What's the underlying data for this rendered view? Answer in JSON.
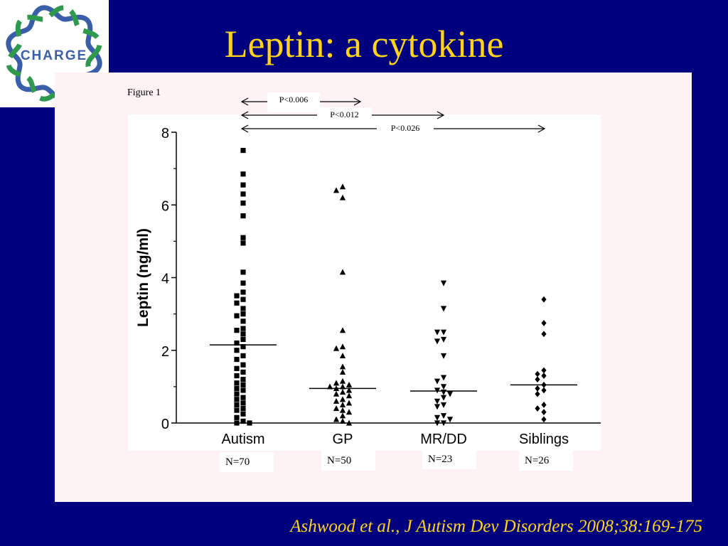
{
  "slide": {
    "title": "Leptin: a cytokine",
    "logo_text": "CHARGE",
    "figure_label": "Figure 1",
    "citation": "Ashwood et al., J Autism Dev Disorders 2008;38:169-175"
  },
  "colors": {
    "background": "#00007f",
    "title": "#ffd31a",
    "logo_blue": "#3a5fa8",
    "logo_green": "#2f9a4e"
  },
  "chart_data": {
    "type": "scatter",
    "ylabel": "Leptin (ng/ml)",
    "ylim": [
      0,
      8
    ],
    "yticks": [
      0,
      2,
      4,
      6,
      8
    ],
    "categories": [
      "Autism",
      "GP",
      "MR/DD",
      "Siblings"
    ],
    "sample_sizes": [
      "N=70",
      "N=50",
      "N=23",
      "N=26"
    ],
    "comparisons": [
      {
        "from": "Autism",
        "to": "GP",
        "label": "P<0.006"
      },
      {
        "from": "Autism",
        "to": "MR/DD",
        "label": "P<0.012"
      },
      {
        "from": "Autism",
        "to": "Siblings",
        "label": "P<0.026"
      }
    ],
    "series": [
      {
        "marker": "square",
        "median": 2.15,
        "values": [
          7.5,
          6.85,
          6.55,
          6.3,
          6.05,
          5.7,
          5.1,
          4.95,
          4.15,
          3.85,
          3.6,
          3.5,
          3.4,
          3.3,
          3.15,
          3.0,
          2.95,
          2.8,
          2.6,
          2.55,
          2.45,
          2.3,
          2.2,
          2.1,
          2.0,
          1.85,
          1.75,
          1.6,
          1.5,
          1.4,
          1.3,
          1.2,
          1.1,
          1.05,
          0.95,
          0.9,
          0.8,
          0.7,
          0.65,
          0.55,
          0.5,
          0.4,
          0.35,
          0.25,
          0.15,
          0.05,
          0.0,
          0.0
        ]
      },
      {
        "marker": "triangle-up",
        "median": 0.95,
        "values": [
          6.5,
          6.4,
          6.2,
          4.15,
          2.55,
          2.1,
          2.05,
          1.85,
          1.55,
          1.4,
          1.15,
          1.1,
          1.05,
          1.0,
          1.0,
          0.95,
          0.9,
          0.85,
          0.8,
          0.75,
          0.65,
          0.6,
          0.55,
          0.5,
          0.4,
          0.35,
          0.3,
          0.2,
          0.1,
          0.05,
          0.0
        ]
      },
      {
        "marker": "triangle-down",
        "median": 0.88,
        "values": [
          3.85,
          3.15,
          2.5,
          2.5,
          2.3,
          2.25,
          1.85,
          1.25,
          1.15,
          1.0,
          0.9,
          0.85,
          0.8,
          0.7,
          0.6,
          0.5,
          0.45,
          0.2,
          0.15,
          0.1,
          0.0,
          0.0
        ]
      },
      {
        "marker": "diamond",
        "median": 1.05,
        "values": [
          3.4,
          2.75,
          2.45,
          1.45,
          1.35,
          1.3,
          1.2,
          1.05,
          0.95,
          0.9,
          0.8,
          0.5,
          0.4,
          0.3,
          0.1
        ]
      }
    ]
  }
}
